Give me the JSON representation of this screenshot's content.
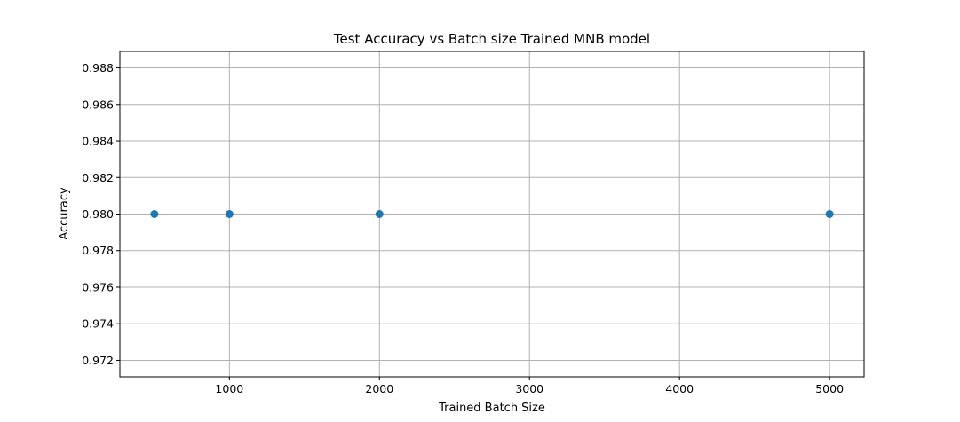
{
  "chart_data": {
    "type": "scatter",
    "title": "Test Accuracy vs Batch size Trained MNB model",
    "xlabel": "Trained Batch Size",
    "ylabel": "Accuracy",
    "x": [
      500,
      1000,
      2000,
      5000
    ],
    "y": [
      0.98,
      0.98,
      0.98,
      0.98
    ],
    "xlim": [
      270,
      5230
    ],
    "ylim": [
      0.9711,
      0.9889
    ],
    "xticks": [
      1000,
      2000,
      3000,
      4000,
      5000
    ],
    "xtick_labels": [
      "1000",
      "2000",
      "3000",
      "4000",
      "5000"
    ],
    "yticks": [
      0.972,
      0.974,
      0.976,
      0.978,
      0.98,
      0.982,
      0.984,
      0.986,
      0.988
    ],
    "ytick_labels": [
      "0.972",
      "0.974",
      "0.976",
      "0.978",
      "0.980",
      "0.982",
      "0.984",
      "0.986",
      "0.988"
    ],
    "grid": true,
    "marker_color": "#1f77b4",
    "grid_color": "#b0b0b0"
  }
}
